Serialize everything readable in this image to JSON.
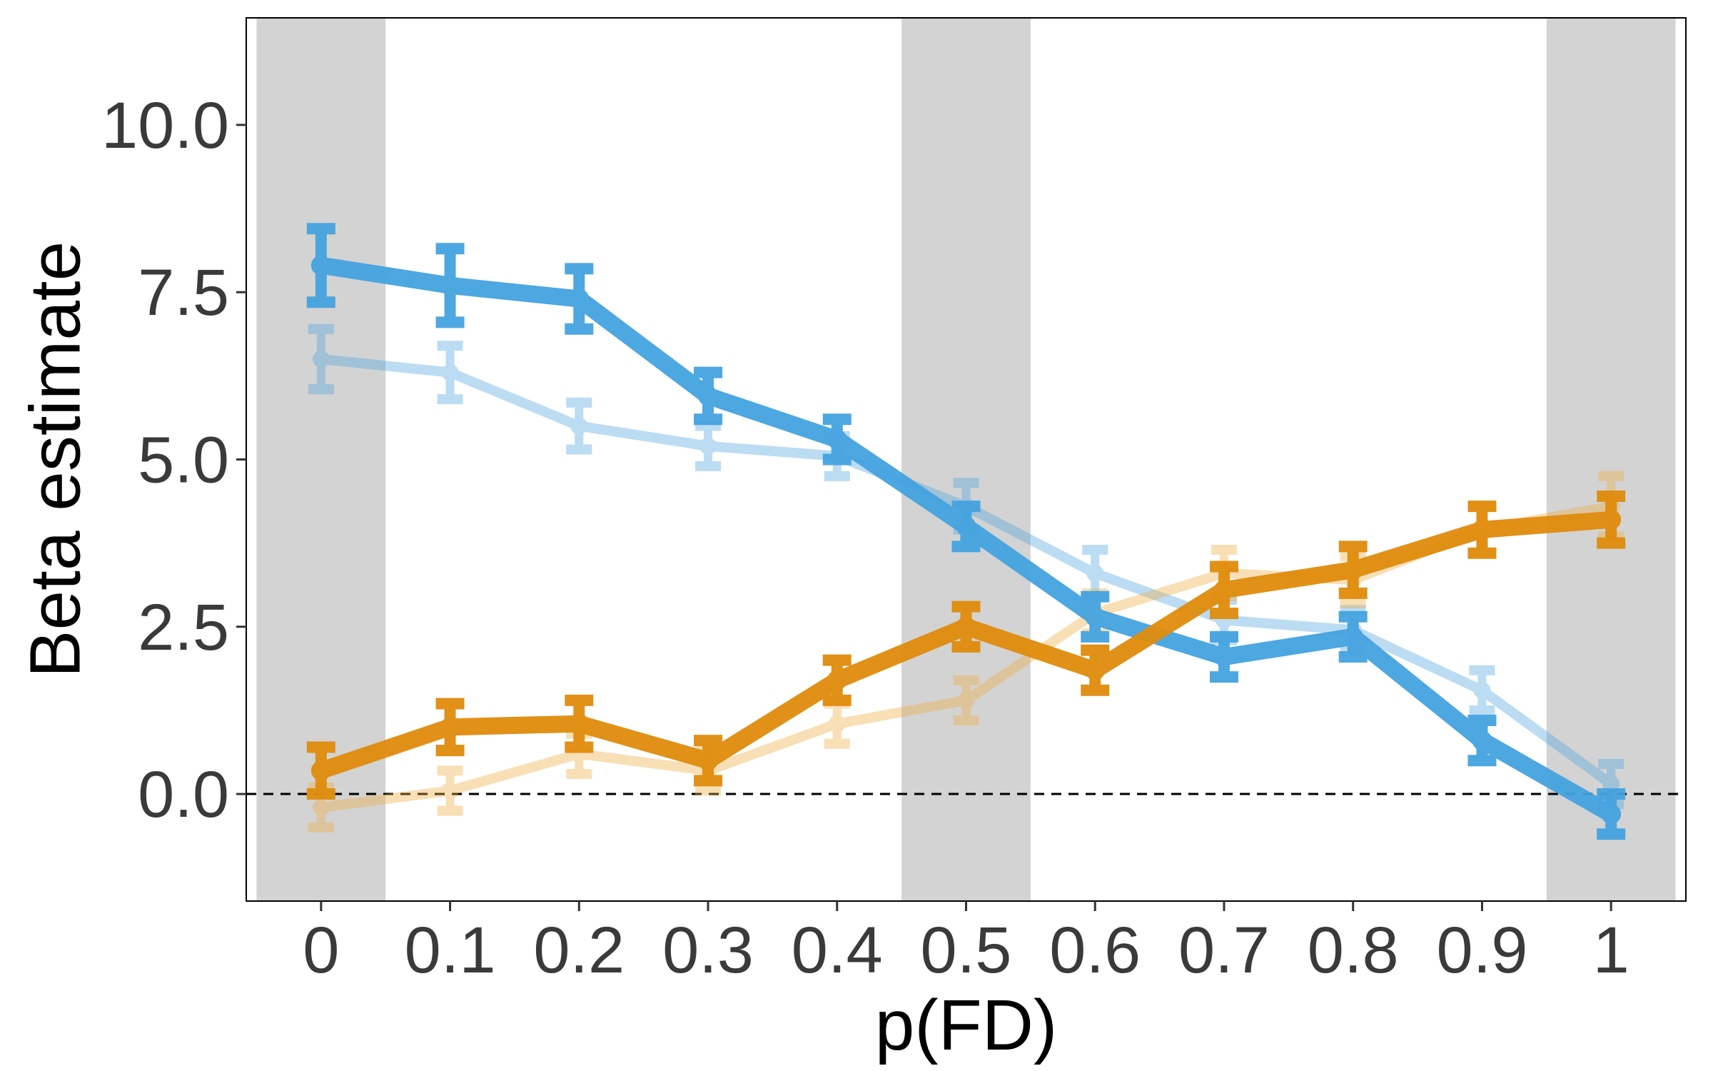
{
  "chart_data": {
    "type": "line",
    "title": "",
    "xlabel": "p(FD)",
    "ylabel": "Beta estimate",
    "xlim": [
      -0.058,
      1.058
    ],
    "ylim": [
      -1.6,
      11.6
    ],
    "x": [
      0,
      0.1,
      0.2,
      0.3,
      0.4,
      0.5,
      0.6,
      0.7,
      0.8,
      0.9,
      1
    ],
    "x_tick_labels": [
      "0",
      "0.1",
      "0.2",
      "0.3",
      "0.4",
      "0.5",
      "0.6",
      "0.7",
      "0.8",
      "0.9",
      "1"
    ],
    "y_ticks": [
      0,
      2.5,
      5,
      7.5,
      10
    ],
    "y_tick_labels": [
      "0.0",
      "2.5",
      "5.0",
      "7.5",
      "10.0"
    ],
    "grid": false,
    "reference_line": {
      "y": 0,
      "style": "dashed",
      "color": "#000000"
    },
    "shaded_bands": [
      {
        "x0": -0.05,
        "x1": 0.05
      },
      {
        "x0": 0.45,
        "x1": 0.55
      },
      {
        "x0": 0.95,
        "x1": 1.05
      }
    ],
    "band_color": "#d3d3d3",
    "series": [
      {
        "color": "#4fa6e0",
        "style": "light",
        "y": [
          6.5,
          6.3,
          5.5,
          5.2,
          5.05,
          4.3,
          3.3,
          2.6,
          2.45,
          1.55,
          0.15
        ],
        "err": [
          0.45,
          0.4,
          0.35,
          0.3,
          0.3,
          0.35,
          0.35,
          0.3,
          0.3,
          0.3,
          0.3
        ]
      },
      {
        "color": "#f0ac40",
        "style": "light",
        "y": [
          -0.2,
          0.05,
          0.6,
          0.35,
          1.05,
          1.4,
          2.7,
          3.3,
          3.2,
          3.95,
          4.3
        ],
        "err": [
          0.3,
          0.3,
          0.3,
          0.3,
          0.3,
          0.3,
          0.3,
          0.35,
          0.35,
          0.35,
          0.45
        ]
      },
      {
        "color": "#44a3e0",
        "style": "bold",
        "y": [
          7.9,
          7.6,
          7.4,
          5.95,
          5.3,
          4.0,
          2.65,
          2.05,
          2.35,
          0.8,
          -0.3
        ],
        "err": [
          0.55,
          0.55,
          0.45,
          0.35,
          0.3,
          0.3,
          0.3,
          0.3,
          0.3,
          0.3,
          0.3
        ]
      },
      {
        "color": "#e08c0c",
        "style": "bold",
        "y": [
          0.35,
          1.0,
          1.05,
          0.5,
          1.7,
          2.5,
          1.85,
          3.05,
          3.35,
          3.95,
          4.1
        ],
        "err": [
          0.35,
          0.35,
          0.35,
          0.3,
          0.3,
          0.3,
          0.3,
          0.35,
          0.35,
          0.35,
          0.35
        ]
      }
    ]
  }
}
